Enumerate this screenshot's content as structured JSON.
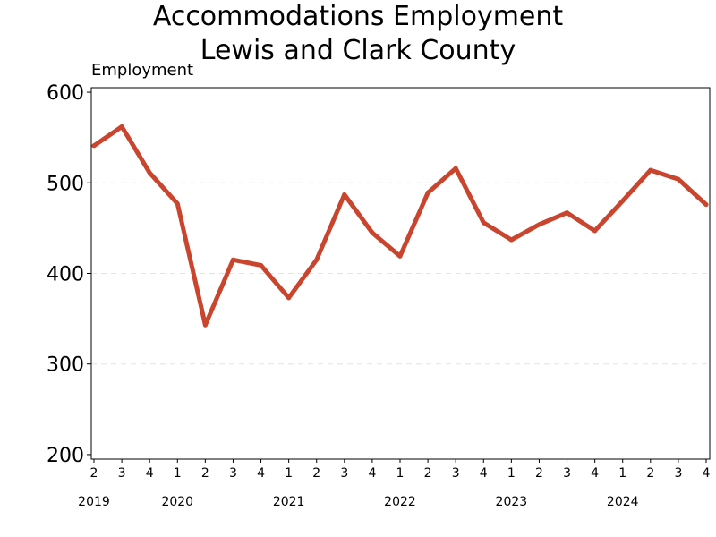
{
  "chart_data": {
    "type": "line",
    "title": [
      "Accommodations Employment",
      "Lewis and Clark County"
    ],
    "ylabel": "Employment",
    "xlabel": "",
    "ylim": [
      195,
      605
    ],
    "yticks": [
      200,
      300,
      400,
      500,
      600
    ],
    "grid": {
      "horizontal": true,
      "style": "dashed"
    },
    "colors": {
      "line": "#c9452e",
      "grid": "#e4e4e4"
    },
    "x": [
      {
        "year": 2019,
        "quarter": 2
      },
      {
        "year": 2019,
        "quarter": 3
      },
      {
        "year": 2019,
        "quarter": 4
      },
      {
        "year": 2020,
        "quarter": 1
      },
      {
        "year": 2020,
        "quarter": 2
      },
      {
        "year": 2020,
        "quarter": 3
      },
      {
        "year": 2020,
        "quarter": 4
      },
      {
        "year": 2021,
        "quarter": 1
      },
      {
        "year": 2021,
        "quarter": 2
      },
      {
        "year": 2021,
        "quarter": 3
      },
      {
        "year": 2021,
        "quarter": 4
      },
      {
        "year": 2022,
        "quarter": 1
      },
      {
        "year": 2022,
        "quarter": 2
      },
      {
        "year": 2022,
        "quarter": 3
      },
      {
        "year": 2022,
        "quarter": 4
      },
      {
        "year": 2023,
        "quarter": 1
      },
      {
        "year": 2023,
        "quarter": 2
      },
      {
        "year": 2023,
        "quarter": 3
      },
      {
        "year": 2023,
        "quarter": 4
      },
      {
        "year": 2024,
        "quarter": 1
      },
      {
        "year": 2024,
        "quarter": 2
      },
      {
        "year": 2024,
        "quarter": 3
      },
      {
        "year": 2024,
        "quarter": 4
      }
    ],
    "series": [
      {
        "values": [
          541,
          562,
          511,
          477,
          343,
          415,
          409,
          373,
          415,
          487,
          445,
          419,
          489,
          516,
          456,
          437,
          454,
          467,
          447,
          480,
          514,
          504,
          476
        ]
      }
    ]
  }
}
